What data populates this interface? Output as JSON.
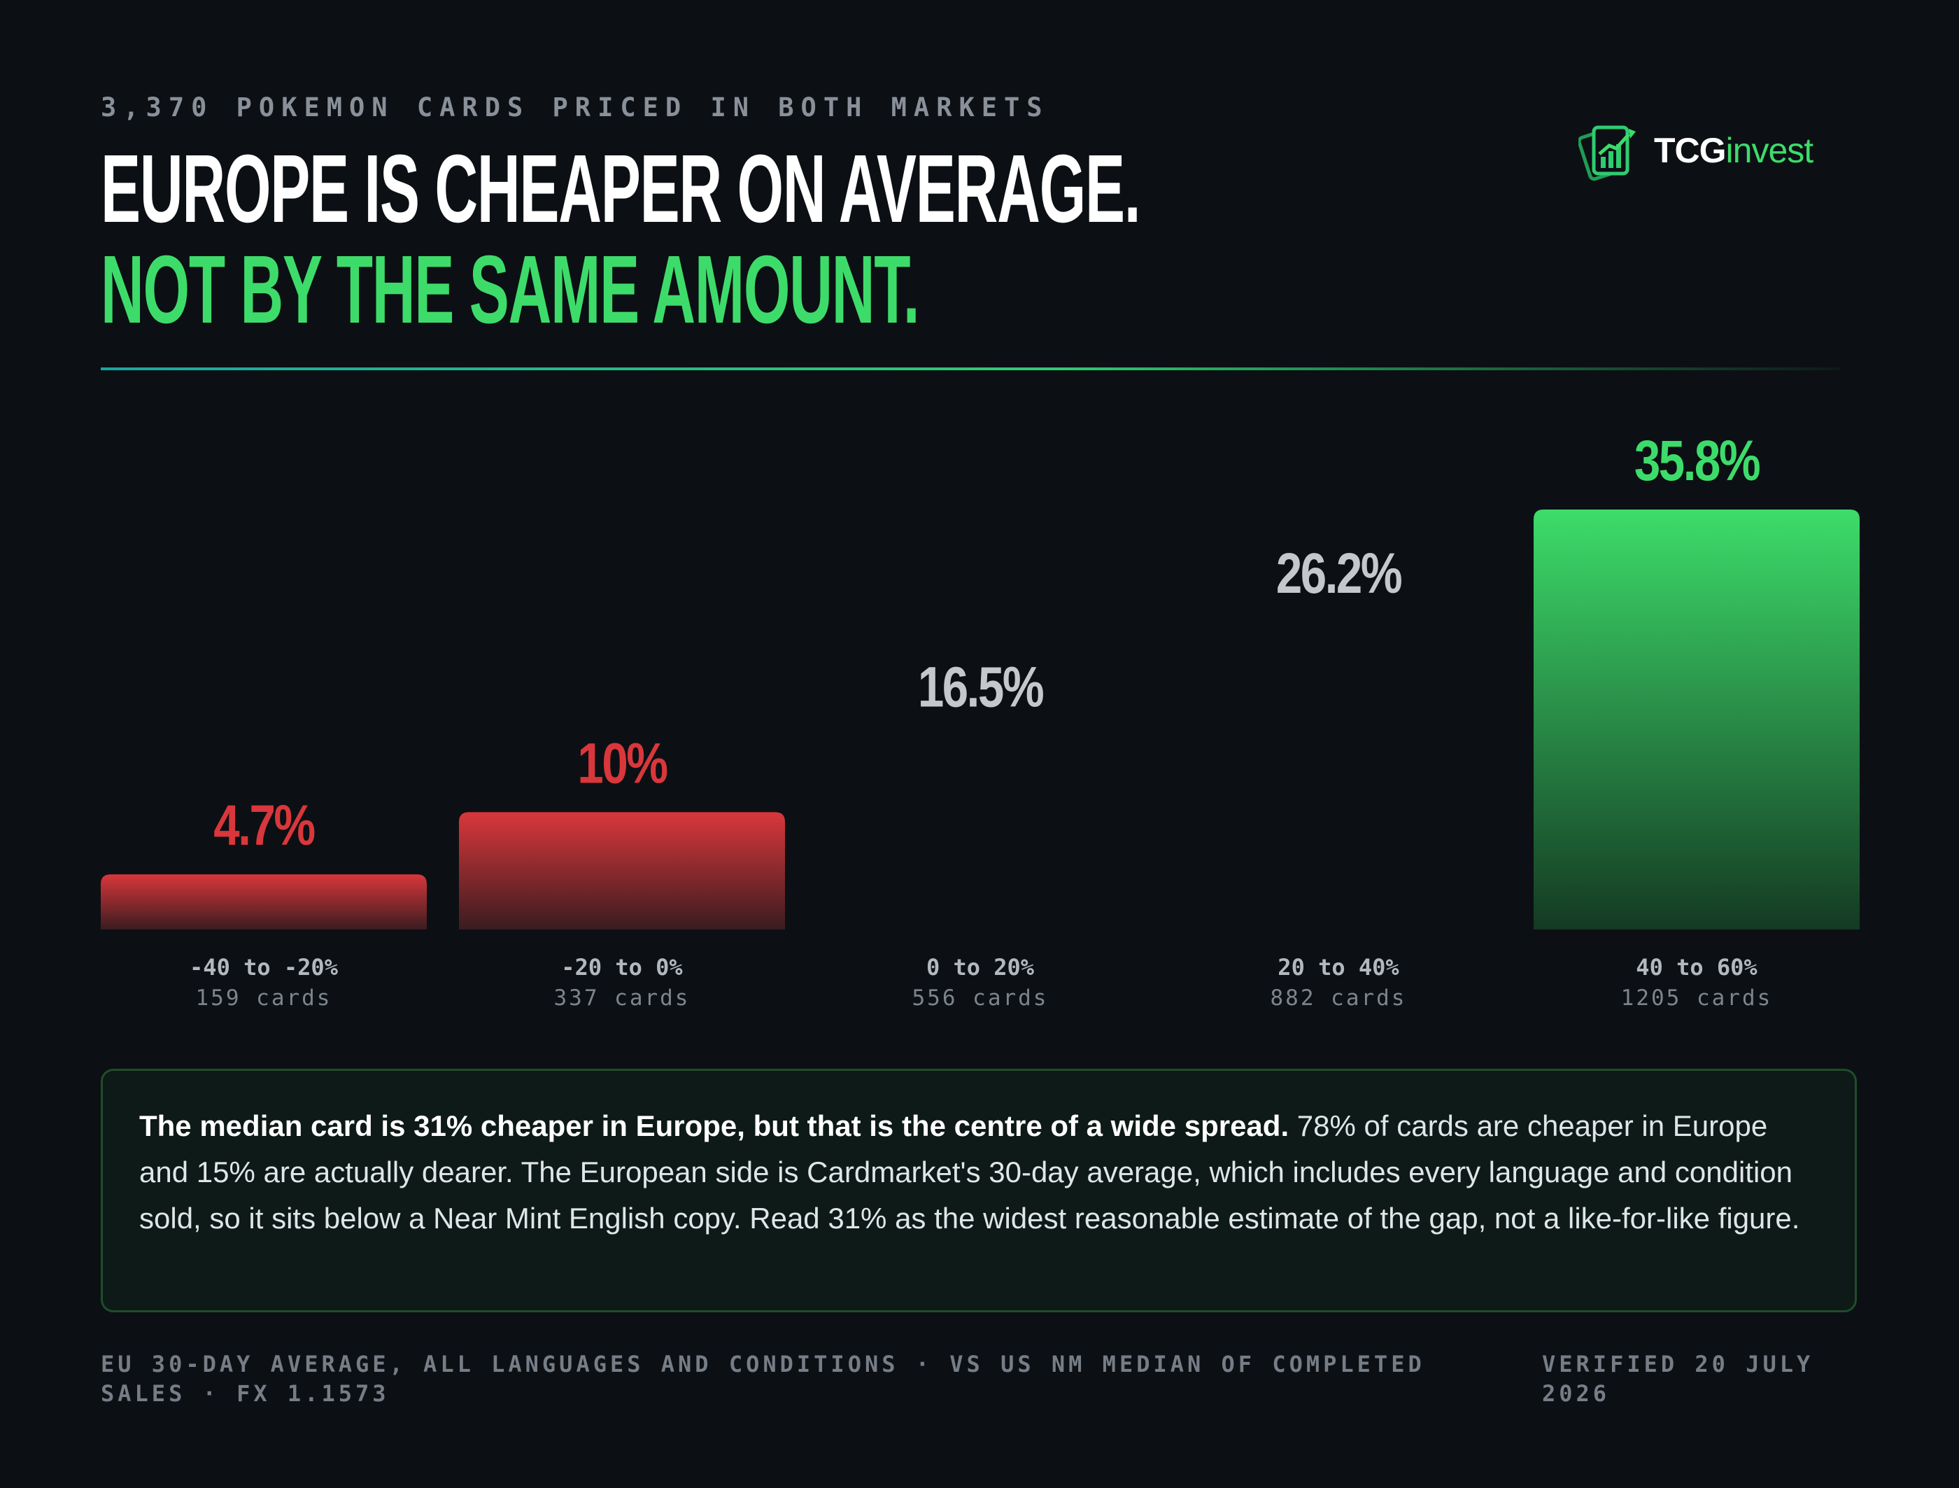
{
  "kicker": "3,370 POKEMON CARDS PRICED IN BOTH MARKETS",
  "headline": {
    "line1": "EUROPE IS CHEAPER ON AVERAGE.",
    "line2": "NOT BY THE SAME AMOUNT."
  },
  "logo": {
    "tcg": "TCG",
    "invest": "invest"
  },
  "colors": {
    "accent_green": "#3ddc6a",
    "negative_red": "#d9373b",
    "neutral_gray": "#c4c8cc",
    "background": "#0c1014"
  },
  "chart_data": {
    "type": "bar",
    "categories": [
      "-40 to -20%",
      "-20 to 0%",
      "0 to 20%",
      "20 to 40%",
      "40 to 60%"
    ],
    "counts": [
      "159 cards",
      "337 cards",
      "556 cards",
      "882 cards",
      "1205 cards"
    ],
    "values": [
      4.7,
      10,
      16.5,
      26.2,
      35.8
    ],
    "value_labels": [
      "4.7%",
      "10%",
      "16.5%",
      "26.2%",
      "35.8%"
    ],
    "bar_colors": [
      "red",
      "red",
      "hidden",
      "hidden",
      "green"
    ],
    "label_colors": [
      "red",
      "red",
      "gray",
      "gray",
      "green"
    ],
    "ylim": [
      0,
      35.8
    ],
    "grid": false,
    "legend": "none"
  },
  "summary": {
    "bold": "The median card is 31% cheaper in Europe, but that is the centre of a wide spread.",
    "rest": " 78% of cards are cheaper in Europe and 15% are actually dearer. The European side is Cardmarket's 30-day average, which includes every language and condition sold, so it sits below a Near Mint English copy. Read 31% as the widest reasonable estimate of the gap, not a like-for-like figure."
  },
  "footer": {
    "source": "EU 30-DAY AVERAGE, ALL LANGUAGES AND CONDITIONS · VS US NM MEDIAN OF COMPLETED SALES · FX 1.1573",
    "verified": "VERIFIED 20 JULY 2026"
  }
}
